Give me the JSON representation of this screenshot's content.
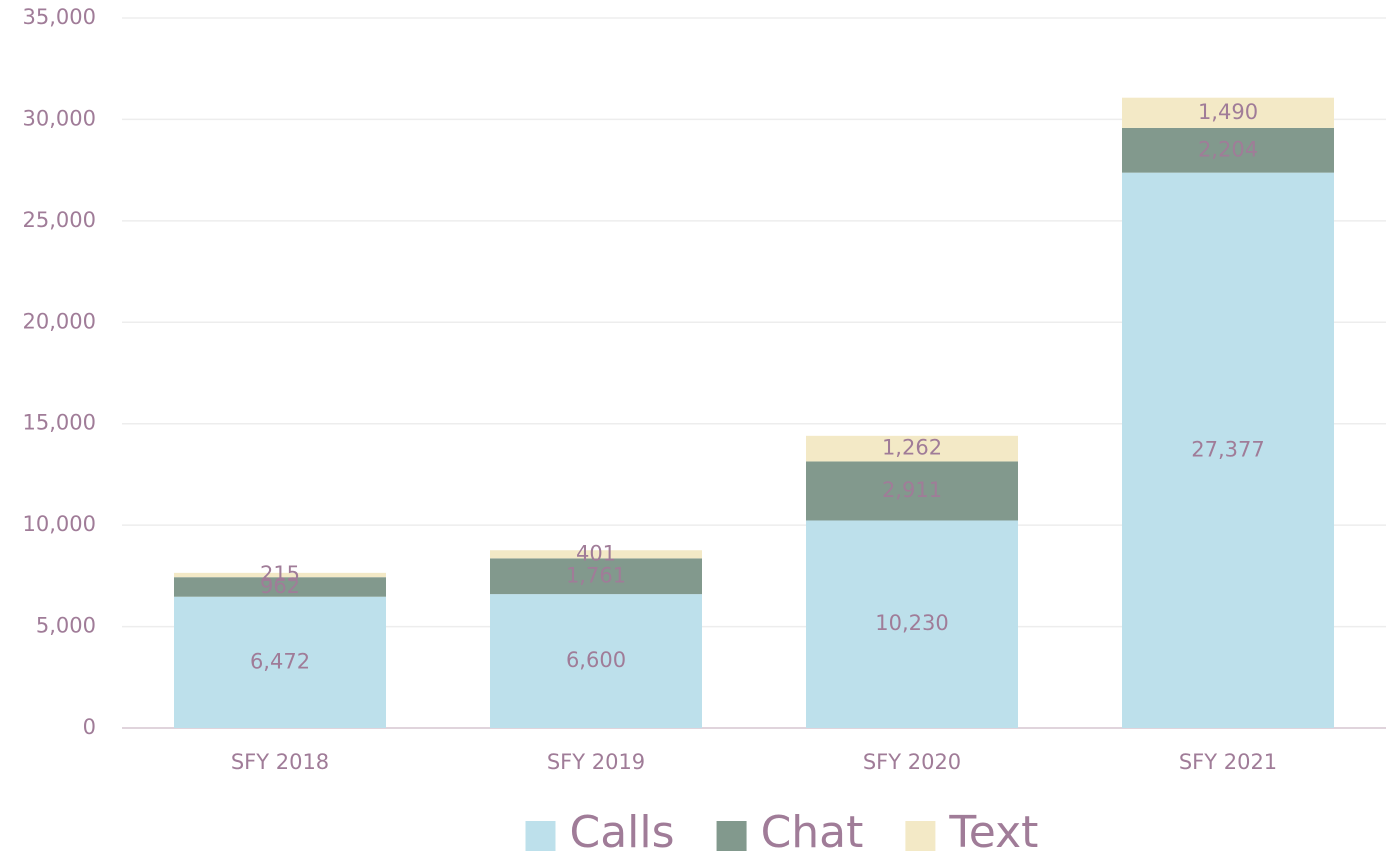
{
  "chart_data": {
    "type": "stacked_bar",
    "categories": [
      "SFY 2018",
      "SFY 2019",
      "SFY 2020",
      "SFY 2021"
    ],
    "series": [
      {
        "name": "Calls",
        "color": "#bde0eb",
        "values": [
          6472,
          6600,
          10230,
          27377
        ],
        "value_labels": [
          "6,472",
          "6,600",
          "10,230",
          "27,377"
        ]
      },
      {
        "name": "Chat",
        "color": "#82998d",
        "values": [
          962,
          1761,
          2911,
          2204
        ],
        "value_labels": [
          "962",
          "1,761",
          "2,911",
          "2,204"
        ]
      },
      {
        "name": "Text",
        "color": "#f3e9c6",
        "values": [
          215,
          401,
          1262,
          1490
        ],
        "value_labels": [
          "215",
          "401",
          "1,262",
          "1,490"
        ]
      }
    ],
    "ylim": [
      0,
      35000
    ],
    "yticks": [
      0,
      {
        "value": 5000,
        "label": "5,000"
      },
      {
        "value": 10000,
        "label": "10,000"
      },
      {
        "value": 15000,
        "label": "15,000"
      },
      {
        "value": 20000,
        "label": "20,000"
      },
      {
        "value": 25000,
        "label": "25,000"
      },
      {
        "value": 30000,
        "label": "30,000"
      },
      {
        "value": 35000,
        "label": "35,000"
      }
    ],
    "grid": true,
    "legend": "bottom"
  }
}
